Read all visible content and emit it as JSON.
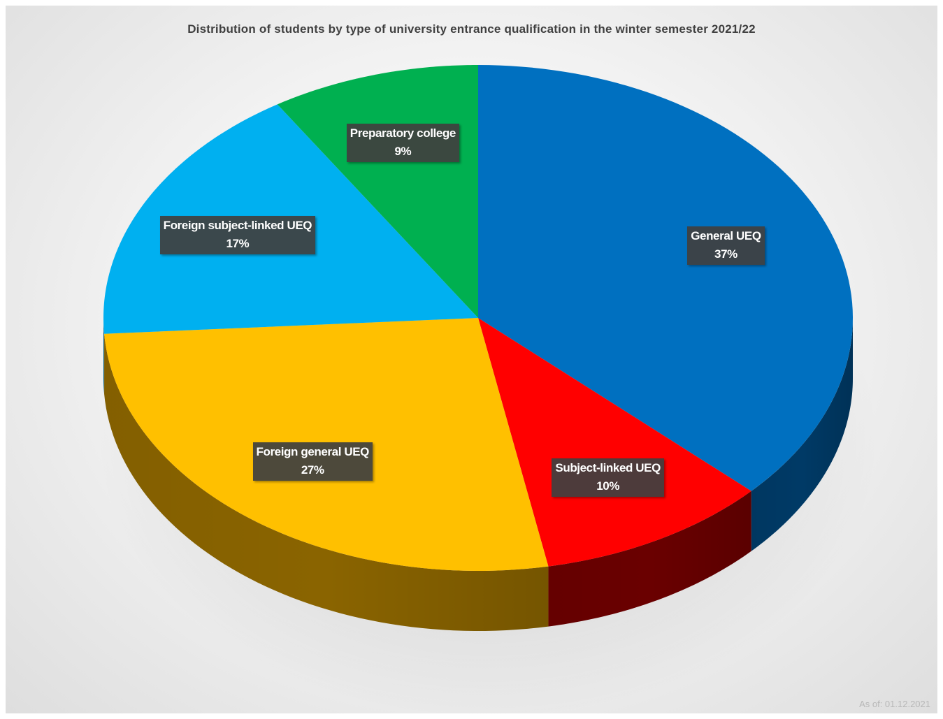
{
  "chart_data": {
    "type": "pie",
    "title": "Distribution of students by type of university entrance qualification in the winter semester 2021/22",
    "slices": [
      {
        "label": "General UEQ",
        "value": 37,
        "value_label": "37%",
        "color": "#0070C0",
        "side_color": "#003a66"
      },
      {
        "label": "Subject-linked UEQ",
        "value": 10,
        "value_label": "10%",
        "color": "#FF0000",
        "side_color": "#6a0000"
      },
      {
        "label": "Foreign general UEQ",
        "value": 27,
        "value_label": "27%",
        "color": "#FFC000",
        "side_color": "#8a6400"
      },
      {
        "label": "Foreign subject-linked UEQ",
        "value": 17,
        "value_label": "17%",
        "color": "#00B0F0",
        "side_color": "#005e80"
      },
      {
        "label": "Preparatory college",
        "value": 9,
        "value_label": "9%",
        "color": "#00B050",
        "side_color": "#005a28"
      }
    ],
    "legend": "none",
    "start_angle": "12 o'clock, clockwise",
    "style": "3d"
  },
  "footer": {
    "as_of": "As of: 01.12.2021"
  }
}
